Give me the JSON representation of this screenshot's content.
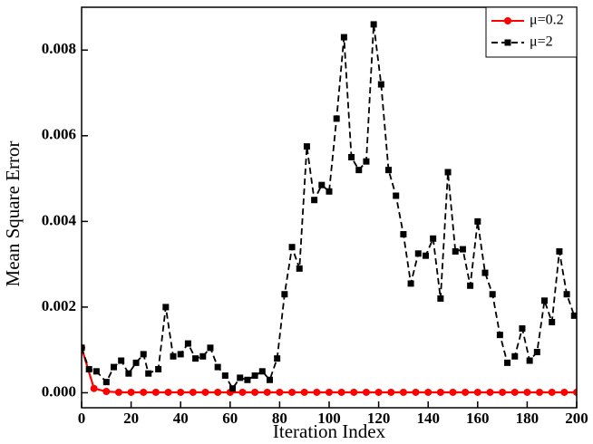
{
  "chart_data": {
    "type": "line",
    "xlabel": "Iteration Index",
    "ylabel": "Mean Square Error",
    "xlim": [
      0,
      200
    ],
    "xticks": [
      0,
      20,
      40,
      60,
      80,
      100,
      120,
      140,
      160,
      180,
      200
    ],
    "ylim": [
      -0.00035,
      0.009
    ],
    "yticks": [
      {
        "value": 0,
        "label": "0.000"
      },
      {
        "value": 0.002,
        "label": "0.002"
      },
      {
        "value": 0.004,
        "label": "0.004"
      },
      {
        "value": 0.006,
        "label": "0.006"
      },
      {
        "value": 0.008,
        "label": "0.008"
      }
    ],
    "legend": "upper right",
    "series": [
      {
        "name": "μ=0.2",
        "color": "#ff0000",
        "style": "solid",
        "marker": "circle",
        "x": [
          0,
          5,
          10,
          15,
          20,
          25,
          30,
          35,
          40,
          45,
          50,
          55,
          60,
          65,
          70,
          75,
          80,
          85,
          90,
          95,
          100,
          105,
          110,
          115,
          120,
          125,
          130,
          135,
          140,
          145,
          150,
          155,
          160,
          165,
          170,
          175,
          180,
          185,
          190,
          195,
          200
        ],
        "values": [
          0.00105,
          0.0001,
          3e-05,
          1e-05,
          1e-05,
          1e-05,
          1e-05,
          1e-05,
          1e-05,
          1e-05,
          1e-05,
          1e-05,
          1e-05,
          1e-05,
          1e-05,
          1e-05,
          1e-05,
          1e-05,
          1e-05,
          1e-05,
          1e-05,
          1e-05,
          1e-05,
          1e-05,
          1e-05,
          1e-05,
          1e-05,
          1e-05,
          1e-05,
          1e-05,
          1e-05,
          1e-05,
          1e-05,
          1e-05,
          1e-05,
          1e-05,
          1e-05,
          1e-05,
          1e-05,
          1e-05,
          1e-05
        ]
      },
      {
        "name": "μ=2",
        "color": "#000000",
        "style": "dashed",
        "marker": "square",
        "x": [
          0,
          3,
          6,
          10,
          13,
          16,
          19,
          22,
          25,
          27,
          31,
          34,
          37,
          40,
          43,
          46,
          49,
          52,
          55,
          58,
          61,
          64,
          67,
          70,
          73,
          76,
          79,
          82,
          85,
          88,
          91,
          94,
          97,
          100,
          103,
          106,
          109,
          112,
          115,
          118,
          121,
          124,
          127,
          130,
          133,
          136,
          139,
          142,
          145,
          148,
          151,
          154,
          157,
          160,
          163,
          166,
          169,
          172,
          175,
          178,
          181,
          184,
          187,
          190,
          193,
          196,
          199
        ],
        "values": [
          0.00105,
          0.00055,
          0.0005,
          0.00025,
          0.0006,
          0.00075,
          0.00045,
          0.0007,
          0.0009,
          0.00045,
          0.00055,
          0.002,
          0.00085,
          0.0009,
          0.00115,
          0.0008,
          0.00085,
          0.00105,
          0.0006,
          0.0004,
          0.0001,
          0.00035,
          0.0003,
          0.0004,
          0.0005,
          0.0003,
          0.0008,
          0.0023,
          0.0034,
          0.0029,
          0.00575,
          0.0045,
          0.00485,
          0.0047,
          0.0064,
          0.0083,
          0.0055,
          0.0052,
          0.0054,
          0.0086,
          0.0072,
          0.0052,
          0.0046,
          0.0037,
          0.00255,
          0.00325,
          0.0032,
          0.0036,
          0.0022,
          0.00515,
          0.0033,
          0.00335,
          0.0025,
          0.004,
          0.0028,
          0.0023,
          0.00135,
          0.0007,
          0.00085,
          0.0015,
          0.00075,
          0.00095,
          0.00215,
          0.00165,
          0.0033,
          0.0023,
          0.0018
        ]
      }
    ]
  }
}
